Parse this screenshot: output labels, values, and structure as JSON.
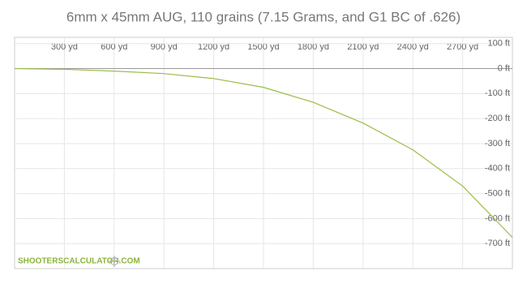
{
  "chart_data": {
    "type": "line",
    "title": "6mm x 45mm AUG, 110 grains (7.15 Grams, and G1 BC of .626)",
    "watermark": "SHOOTERSCALCULATOR.COM",
    "x": [
      0,
      300,
      600,
      900,
      1200,
      1500,
      1800,
      2100,
      2400,
      2700,
      3000
    ],
    "series": [
      {
        "color": "#9bbb4a",
        "values": [
          0,
          -3,
          -10,
          -20,
          -40,
          -75,
          -135,
          -218,
          -325,
          -470,
          -675
        ]
      }
    ],
    "xlim": [
      0,
      3000
    ],
    "xticks": [
      {
        "value": 300,
        "label": "300 yd"
      },
      {
        "value": 600,
        "label": "600 yd"
      },
      {
        "value": 900,
        "label": "900 yd"
      },
      {
        "value": 1200,
        "label": "1200 yd"
      },
      {
        "value": 1500,
        "label": "1500 yd"
      },
      {
        "value": 1800,
        "label": "1800 yd"
      },
      {
        "value": 2100,
        "label": "2100 yd"
      },
      {
        "value": 2400,
        "label": "2400 yd"
      },
      {
        "value": 2700,
        "label": "2700 yd"
      }
    ],
    "ylim": [
      -800,
      125
    ],
    "yticks": [
      {
        "value": 100,
        "label": "100 ft"
      },
      {
        "value": 0,
        "label": "0 ft"
      },
      {
        "value": -100,
        "label": "-100 ft"
      },
      {
        "value": -200,
        "label": "-200 ft"
      },
      {
        "value": -300,
        "label": "-300 ft"
      },
      {
        "value": -400,
        "label": "-400 ft"
      },
      {
        "value": -500,
        "label": "-500 ft"
      },
      {
        "value": -600,
        "label": "-600 ft"
      },
      {
        "value": -700,
        "label": "-700 ft"
      }
    ],
    "grid": true
  }
}
